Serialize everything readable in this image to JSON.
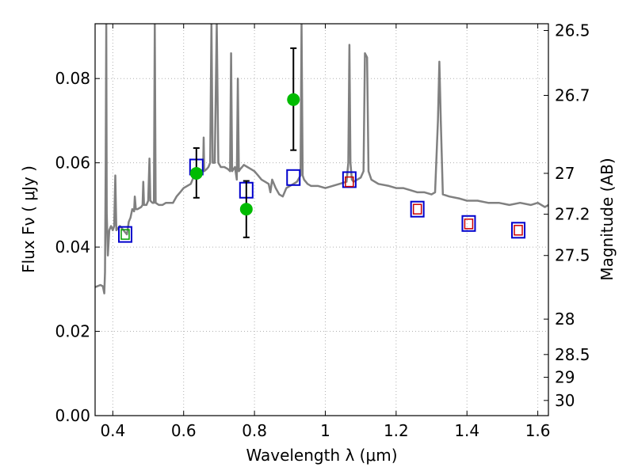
{
  "chart_data": {
    "type": "scatter",
    "xlabel": "Wavelength  λ (μm)",
    "ylabel": "Flux  Fν  ( μJy )",
    "y2label": "Magnitude (AB)",
    "xlim": [
      0.35,
      1.63
    ],
    "ylim": [
      0.0,
      0.093
    ],
    "grid": true,
    "x_ticks": [
      {
        "value": 0.4,
        "label": "0.4"
      },
      {
        "value": 0.6,
        "label": "0.6"
      },
      {
        "value": 0.8,
        "label": "0.8"
      },
      {
        "value": 1.0,
        "label": "1"
      },
      {
        "value": 1.2,
        "label": "1.2"
      },
      {
        "value": 1.4,
        "label": "1.4"
      },
      {
        "value": 1.6,
        "label": "1.6"
      }
    ],
    "y_ticks": [
      {
        "value": 0.0,
        "label": "0.00"
      },
      {
        "value": 0.02,
        "label": "0.02"
      },
      {
        "value": 0.04,
        "label": "0.04"
      },
      {
        "value": 0.06,
        "label": "0.06"
      },
      {
        "value": 0.08,
        "label": "0.08"
      }
    ],
    "y2_ticks": [
      {
        "flux": 0.0914,
        "label": "26.5"
      },
      {
        "flux": 0.076,
        "label": "26.7"
      },
      {
        "flux": 0.0575,
        "label": "27"
      },
      {
        "flux": 0.0478,
        "label": "27.2"
      },
      {
        "flux": 0.038,
        "label": "27.5"
      },
      {
        "flux": 0.0229,
        "label": "28"
      },
      {
        "flux": 0.0145,
        "label": "28.5"
      },
      {
        "flux": 0.0091,
        "label": "29"
      },
      {
        "flux": 0.0036,
        "label": "30"
      }
    ],
    "series": [
      {
        "name": "",
        "kind": "spectrum",
        "color": "#808080",
        "points": [
          [
            0.35,
            0.0305
          ],
          [
            0.365,
            0.031
          ],
          [
            0.372,
            0.0307
          ],
          [
            0.376,
            0.029
          ],
          [
            0.378,
            0.034
          ],
          [
            0.38,
            0.06
          ],
          [
            0.3815,
            0.093
          ],
          [
            0.383,
            0.048
          ],
          [
            0.386,
            0.038
          ],
          [
            0.39,
            0.044
          ],
          [
            0.395,
            0.045
          ],
          [
            0.4,
            0.044
          ],
          [
            0.404,
            0.045
          ],
          [
            0.407,
            0.057
          ],
          [
            0.41,
            0.044
          ],
          [
            0.42,
            0.045
          ],
          [
            0.43,
            0.044
          ],
          [
            0.44,
            0.043
          ],
          [
            0.445,
            0.046
          ],
          [
            0.45,
            0.047
          ],
          [
            0.455,
            0.049
          ],
          [
            0.46,
            0.0485
          ],
          [
            0.462,
            0.052
          ],
          [
            0.465,
            0.049
          ],
          [
            0.47,
            0.049
          ],
          [
            0.48,
            0.0495
          ],
          [
            0.484,
            0.05
          ],
          [
            0.486,
            0.0555
          ],
          [
            0.488,
            0.05
          ],
          [
            0.495,
            0.05
          ],
          [
            0.5,
            0.051
          ],
          [
            0.5035,
            0.061
          ],
          [
            0.506,
            0.051
          ],
          [
            0.512,
            0.0505
          ],
          [
            0.516,
            0.0505
          ],
          [
            0.5185,
            0.093
          ],
          [
            0.521,
            0.0505
          ],
          [
            0.53,
            0.05
          ],
          [
            0.54,
            0.05
          ],
          [
            0.55,
            0.0505
          ],
          [
            0.56,
            0.0505
          ],
          [
            0.57,
            0.0505
          ],
          [
            0.58,
            0.052
          ],
          [
            0.59,
            0.053
          ],
          [
            0.6,
            0.054
          ],
          [
            0.61,
            0.0545
          ],
          [
            0.62,
            0.055
          ],
          [
            0.63,
            0.057
          ],
          [
            0.64,
            0.0575
          ],
          [
            0.65,
            0.058
          ],
          [
            0.655,
            0.0585
          ],
          [
            0.6565,
            0.066
          ],
          [
            0.658,
            0.058
          ],
          [
            0.665,
            0.0585
          ],
          [
            0.67,
            0.059
          ],
          [
            0.675,
            0.06
          ],
          [
            0.6785,
            0.093
          ],
          [
            0.682,
            0.06
          ],
          [
            0.688,
            0.06
          ],
          [
            0.6935,
            0.093
          ],
          [
            0.698,
            0.06
          ],
          [
            0.705,
            0.059
          ],
          [
            0.715,
            0.059
          ],
          [
            0.725,
            0.0585
          ],
          [
            0.731,
            0.058
          ],
          [
            0.734,
            0.086
          ],
          [
            0.737,
            0.058
          ],
          [
            0.745,
            0.059
          ],
          [
            0.75,
            0.056
          ],
          [
            0.753,
            0.08
          ],
          [
            0.756,
            0.058
          ],
          [
            0.76,
            0.0585
          ],
          [
            0.765,
            0.059
          ],
          [
            0.77,
            0.0595
          ],
          [
            0.78,
            0.059
          ],
          [
            0.79,
            0.0585
          ],
          [
            0.8,
            0.058
          ],
          [
            0.81,
            0.057
          ],
          [
            0.82,
            0.056
          ],
          [
            0.83,
            0.0555
          ],
          [
            0.84,
            0.055
          ],
          [
            0.845,
            0.053
          ],
          [
            0.85,
            0.056
          ],
          [
            0.86,
            0.054
          ],
          [
            0.87,
            0.0525
          ],
          [
            0.88,
            0.052
          ],
          [
            0.89,
            0.054
          ],
          [
            0.9,
            0.0545
          ],
          [
            0.91,
            0.055
          ],
          [
            0.92,
            0.0555
          ],
          [
            0.93,
            0.057
          ],
          [
            0.933,
            0.093
          ],
          [
            0.936,
            0.057
          ],
          [
            0.94,
            0.056
          ],
          [
            0.95,
            0.055
          ],
          [
            0.96,
            0.0545
          ],
          [
            0.98,
            0.0545
          ],
          [
            1.0,
            0.054
          ],
          [
            1.02,
            0.0545
          ],
          [
            1.04,
            0.055
          ],
          [
            1.06,
            0.0555
          ],
          [
            1.065,
            0.06
          ],
          [
            1.068,
            0.088
          ],
          [
            1.071,
            0.06
          ],
          [
            1.075,
            0.056
          ],
          [
            1.08,
            0.0555
          ],
          [
            1.09,
            0.056
          ],
          [
            1.1,
            0.0565
          ],
          [
            1.108,
            0.058
          ],
          [
            1.112,
            0.086
          ],
          [
            1.118,
            0.085
          ],
          [
            1.122,
            0.058
          ],
          [
            1.13,
            0.056
          ],
          [
            1.15,
            0.055
          ],
          [
            1.18,
            0.0545
          ],
          [
            1.2,
            0.054
          ],
          [
            1.22,
            0.054
          ],
          [
            1.24,
            0.0535
          ],
          [
            1.26,
            0.053
          ],
          [
            1.28,
            0.053
          ],
          [
            1.3,
            0.0525
          ],
          [
            1.31,
            0.053
          ],
          [
            1.318,
            0.07
          ],
          [
            1.322,
            0.084
          ],
          [
            1.326,
            0.07
          ],
          [
            1.332,
            0.0525
          ],
          [
            1.35,
            0.052
          ],
          [
            1.38,
            0.0515
          ],
          [
            1.4,
            0.051
          ],
          [
            1.43,
            0.051
          ],
          [
            1.46,
            0.0505
          ],
          [
            1.49,
            0.0505
          ],
          [
            1.52,
            0.05
          ],
          [
            1.55,
            0.0505
          ],
          [
            1.58,
            0.05
          ],
          [
            1.6,
            0.0505
          ],
          [
            1.62,
            0.0495
          ],
          [
            1.63,
            0.05
          ]
        ]
      },
      {
        "name": "",
        "kind": "open-square",
        "color": "#0000cc",
        "points": [
          [
            0.435,
            0.043
          ],
          [
            0.636,
            0.059
          ],
          [
            0.777,
            0.0535
          ],
          [
            0.91,
            0.0565
          ],
          [
            1.068,
            0.056
          ],
          [
            1.26,
            0.049
          ],
          [
            1.405,
            0.0456
          ],
          [
            1.545,
            0.044
          ]
        ]
      },
      {
        "name": "",
        "kind": "small-open-square",
        "color": "#cc0000",
        "points": [
          [
            1.068,
            0.0555
          ],
          [
            1.26,
            0.049
          ],
          [
            1.405,
            0.0455
          ],
          [
            1.545,
            0.044
          ]
        ]
      },
      {
        "name": "",
        "kind": "small-open-square",
        "color": "#009900",
        "points": [
          [
            0.435,
            0.043
          ]
        ]
      },
      {
        "name": "",
        "kind": "filled-circle-errorbar",
        "color": "#00bb00",
        "points": [
          {
            "x": 0.636,
            "y": 0.0575,
            "lo": 0.0517,
            "hi": 0.0635
          },
          {
            "x": 0.777,
            "y": 0.049,
            "lo": 0.0423,
            "hi": 0.0557
          },
          {
            "x": 0.91,
            "y": 0.075,
            "lo": 0.063,
            "hi": 0.0872
          }
        ]
      }
    ]
  }
}
